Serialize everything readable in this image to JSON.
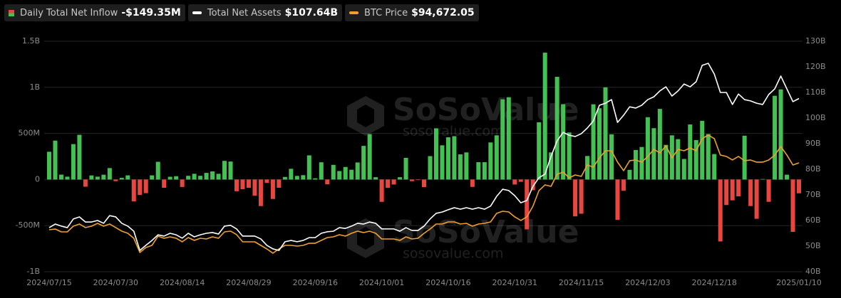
{
  "chart_data": {
    "type": "bar",
    "categories": [
      "2024/07/15",
      null,
      null,
      null,
      null,
      null,
      null,
      null,
      null,
      null,
      null,
      "2024/07/30",
      null,
      null,
      null,
      null,
      null,
      null,
      null,
      null,
      null,
      null,
      "2024/08/14",
      null,
      null,
      null,
      null,
      null,
      null,
      null,
      null,
      null,
      null,
      "2024/08/29",
      null,
      null,
      null,
      null,
      null,
      null,
      null,
      null,
      null,
      null,
      "2024/09/16",
      null,
      null,
      null,
      null,
      null,
      null,
      null,
      null,
      null,
      null,
      "2024/10/01",
      null,
      null,
      null,
      null,
      null,
      null,
      null,
      null,
      null,
      null,
      "2024/10/16",
      null,
      null,
      null,
      null,
      null,
      null,
      null,
      null,
      null,
      null,
      "2024/10/31",
      null,
      null,
      null,
      null,
      null,
      null,
      null,
      null,
      null,
      null,
      "2024/11/15",
      null,
      null,
      null,
      null,
      null,
      null,
      null,
      null,
      null,
      null,
      "2024/12/03",
      null,
      null,
      null,
      null,
      null,
      null,
      null,
      null,
      null,
      null,
      "2024/12/18",
      null,
      null,
      null,
      null,
      null,
      null,
      null,
      null,
      null,
      null,
      null,
      null,
      null,
      "2025/01/10"
    ],
    "series": [
      {
        "name": "Daily Total Net Inflow",
        "type": "bar",
        "value_label": "-$149.35M",
        "color_positive": "#45c153",
        "color_negative": "#e9463f",
        "values": [
          301,
          422,
          53,
          31,
          384,
          485,
          -78,
          44,
          31,
          52,
          124,
          -18,
          18,
          45,
          -237,
          -168,
          -148,
          45,
          192,
          -90,
          30,
          36,
          -81,
          40,
          62,
          40,
          72,
          88,
          62,
          202,
          195,
          -127,
          -105,
          -90,
          -175,
          -288,
          -37,
          -211,
          -90,
          28,
          116,
          39,
          47,
          262,
          13,
          187,
          -52,
          159,
          92,
          136,
          106,
          185,
          365,
          493,
          25,
          -242,
          -91,
          -54,
          25,
          235,
          -18,
          -6,
          -82,
          254,
          555,
          371,
          458,
          470,
          273,
          294,
          -80,
          188,
          188,
          402,
          479,
          870,
          893,
          -54,
          -25,
          -541,
          -116,
          621,
          1376,
          294,
          1114,
          817,
          510,
          -400,
          -371,
          255,
          816,
          773,
          1000,
          490,
          -438,
          -122,
          105,
          320,
          353,
          676,
          557,
          766,
          376,
          479,
          438,
          223,
          597,
          428,
          637,
          493,
          276,
          -672,
          -277,
          -226,
          -183,
          475,
          -288,
          -426,
          5,
          -242,
          908,
          978,
          52,
          -568,
          -149.35
        ]
      },
      {
        "name": "Total Net Assets",
        "type": "line",
        "axis": "y2",
        "value_label": "$107.64B",
        "color": "#ffffff",
        "values": [
          57.2,
          58.6,
          57.8,
          57.2,
          60.6,
          61.4,
          59.4,
          59.4,
          60.0,
          58.9,
          61.9,
          61.4,
          58.9,
          57.8,
          55.8,
          48.3,
          50.3,
          52.2,
          54.4,
          53.9,
          55.0,
          54.4,
          53.1,
          55.0,
          53.6,
          54.4,
          55.0,
          55.3,
          54.7,
          57.8,
          58.1,
          56.7,
          53.9,
          53.9,
          53.9,
          52.8,
          50.3,
          48.9,
          48.3,
          51.7,
          52.2,
          51.7,
          52.2,
          53.3,
          53.3,
          55.0,
          55.6,
          55.8,
          57.2,
          56.9,
          57.8,
          58.9,
          58.6,
          59.4,
          58.9,
          56.7,
          56.7,
          56.7,
          55.8,
          57.2,
          56.1,
          56.1,
          57.8,
          60.6,
          62.8,
          63.3,
          64.2,
          65.0,
          64.4,
          65.0,
          64.4,
          65.0,
          64.4,
          65.6,
          69.4,
          72.2,
          71.7,
          69.7,
          66.9,
          67.8,
          73.3,
          76.7,
          78.1,
          85.0,
          91.1,
          94.4,
          93.3,
          92.8,
          93.9,
          96.1,
          98.9,
          105.0,
          105.8,
          107.2,
          98.3,
          101.1,
          104.4,
          103.9,
          105.0,
          107.2,
          108.3,
          110.6,
          112.2,
          108.6,
          110.6,
          113.3,
          112.2,
          114.2,
          120.6,
          121.4,
          117.2,
          110.0,
          110.0,
          105.3,
          109.4,
          107.2,
          106.7,
          105.8,
          105.3,
          109.2,
          111.4,
          116.4,
          111.4,
          106.4,
          107.64
        ]
      },
      {
        "name": "BTC Price",
        "type": "line",
        "axis": "y3",
        "value_label": "$94,672.05",
        "color": "#f0a02c",
        "values": [
          64030,
          64350,
          63050,
          63050,
          65660,
          66640,
          65010,
          65660,
          66960,
          65660,
          66640,
          65010,
          63380,
          62400,
          60120,
          53600,
          55880,
          56860,
          61090,
          60120,
          60770,
          60120,
          58490,
          60440,
          59140,
          60120,
          59790,
          60770,
          60120,
          63050,
          63380,
          61750,
          58490,
          58490,
          58490,
          56860,
          55230,
          53270,
          55230,
          56860,
          56860,
          56530,
          56860,
          57830,
          57830,
          59140,
          60440,
          60770,
          61750,
          61090,
          62400,
          63380,
          62720,
          63380,
          62400,
          59790,
          59790,
          59790,
          59140,
          60770,
          59790,
          60120,
          62400,
          64350,
          66640,
          66640,
          67610,
          67610,
          66640,
          66960,
          65660,
          66640,
          66960,
          67610,
          71530,
          72500,
          72180,
          69900,
          68270,
          69900,
          74790,
          81960,
          84570,
          83910,
          89460,
          90430,
          87830,
          89130,
          88480,
          93690,
          92720,
          96950,
          100210,
          100210,
          95000,
          91090,
          95650,
          95980,
          95000,
          97610,
          100870,
          99240,
          102500,
          96950,
          100870,
          100210,
          101520,
          100210,
          105760,
          107390,
          105760,
          98260,
          97610,
          95980,
          97610,
          95650,
          95980,
          95000,
          95000,
          95980,
          98260,
          102170,
          98260,
          93690,
          94672.05
        ]
      }
    ],
    "ylim": [
      -1000,
      1500
    ],
    "yticks": [
      {
        "value": -1000,
        "label": "-1B"
      },
      {
        "value": -500,
        "label": "-500M"
      },
      0,
      {
        "value": 500,
        "label": "500M"
      },
      {
        "value": 1000,
        "label": "1B"
      },
      {
        "value": 1500,
        "label": "1.5B"
      }
    ],
    "y2lim": [
      40,
      130
    ],
    "y2ticks": [
      {
        "value": 40,
        "label": "40B"
      },
      {
        "value": 50,
        "label": "50B"
      },
      {
        "value": 60,
        "label": "60B"
      },
      {
        "value": 70,
        "label": "70B"
      },
      {
        "value": 80,
        "label": "80B"
      },
      {
        "value": 90,
        "label": "90B"
      },
      {
        "value": 100,
        "label": "100B"
      },
      {
        "value": 110,
        "label": "110B"
      },
      {
        "value": 120,
        "label": "120B"
      },
      {
        "value": 130,
        "label": "130B"
      }
    ],
    "y3lim": [
      44800,
      150400
    ],
    "grid": true,
    "watermark": {
      "brand": "SoSoValue",
      "site": "sosovalue.com"
    }
  }
}
